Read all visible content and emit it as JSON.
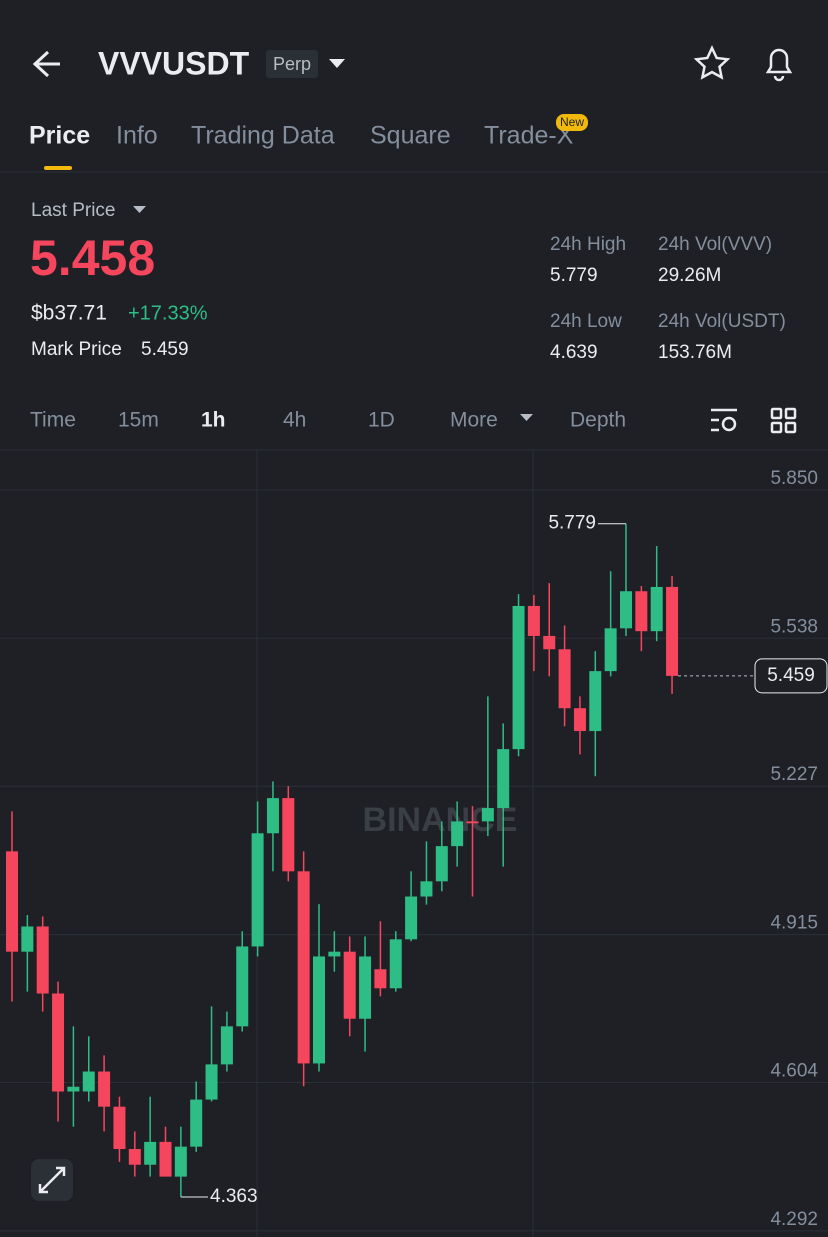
{
  "header": {
    "title": "VVVUSDT",
    "badge": "Perp"
  },
  "tabs": [
    "Price",
    "Info",
    "Trading Data",
    "Square",
    "Trade-X"
  ],
  "new_badge": "New",
  "summary": {
    "last_price_label": "Last Price",
    "last_price": "5.458",
    "fiat": "$b37.71",
    "change": "+17.33%",
    "mark_price_label": "Mark Price",
    "mark_price": "5.459"
  },
  "stats": [
    {
      "label": "24h High",
      "value": "5.779"
    },
    {
      "label": "24h Vol(VVV)",
      "value": "29.26M"
    },
    {
      "label": "24h Low",
      "value": "4.639"
    },
    {
      "label": "24h Vol(USDT)",
      "value": "153.76M"
    }
  ],
  "intervals": [
    "Time",
    "15m",
    "1h",
    "4h",
    "1D",
    "More",
    "Depth"
  ],
  "chart_data": {
    "type": "candlestick",
    "watermark": "BINANCE",
    "open": [
      5.09,
      4.879,
      4.932,
      4.791,
      4.585,
      4.585,
      4.627,
      4.553,
      4.464,
      4.431,
      4.479,
      4.406,
      4.469,
      4.568,
      4.642,
      4.722,
      4.89,
      5.128,
      5.202,
      5.048,
      4.644,
      4.869,
      4.879,
      4.738,
      4.842,
      4.802,
      4.905,
      4.995,
      5.027,
      5.101,
      5.153,
      5.153,
      5.181,
      5.305,
      5.606,
      5.543,
      5.515,
      5.391,
      5.343,
      5.469,
      5.559,
      5.637,
      5.553,
      5.646
    ],
    "high": [
      5.174,
      4.956,
      4.953,
      4.816,
      4.722,
      4.701,
      4.661,
      4.574,
      4.501,
      4.574,
      4.511,
      4.511,
      4.606,
      4.764,
      4.753,
      4.922,
      5.195,
      5.237,
      5.227,
      5.09,
      4.979,
      4.922,
      4.911,
      4.911,
      4.943,
      4.922,
      5.048,
      5.111,
      5.153,
      5.195,
      5.185,
      5.416,
      5.359,
      5.631,
      5.629,
      5.654,
      5.565,
      5.416,
      5.511,
      5.679,
      5.779,
      5.648,
      5.732,
      5.669
    ],
    "low": [
      4.774,
      4.795,
      4.753,
      4.522,
      4.511,
      4.564,
      4.501,
      4.437,
      4.406,
      4.406,
      4.406,
      4.363,
      4.458,
      4.564,
      4.627,
      4.711,
      4.869,
      5.048,
      5.027,
      4.596,
      4.627,
      4.837,
      4.701,
      4.669,
      4.785,
      4.795,
      4.901,
      4.978,
      5.006,
      5.058,
      4.995,
      5.122,
      5.058,
      5.29,
      5.469,
      5.458,
      5.353,
      5.294,
      5.248,
      5.458,
      5.543,
      5.511,
      5.532,
      5.421
    ],
    "close": [
      4.879,
      4.932,
      4.791,
      4.585,
      4.595,
      4.627,
      4.553,
      4.464,
      4.431,
      4.479,
      4.406,
      4.469,
      4.568,
      4.642,
      4.722,
      4.89,
      5.128,
      5.202,
      5.048,
      4.644,
      4.869,
      4.879,
      4.738,
      4.869,
      4.802,
      4.905,
      4.995,
      5.027,
      5.101,
      5.153,
      5.149,
      5.181,
      5.305,
      5.606,
      5.543,
      5.515,
      5.391,
      5.343,
      5.469,
      5.559,
      5.637,
      5.553,
      5.646,
      5.459
    ],
    "up_color": "#2ebd85",
    "down_color": "#f6465d",
    "max_label": 5.779,
    "min_label": 4.363,
    "last_label": 5.459,
    "ylim": [
      4.279,
      5.934
    ],
    "yticks": [
      {
        "value": 5.85,
        "label": "5.850"
      },
      5.538,
      5.227,
      4.915,
      4.604,
      4.292
    ],
    "grid": true
  }
}
